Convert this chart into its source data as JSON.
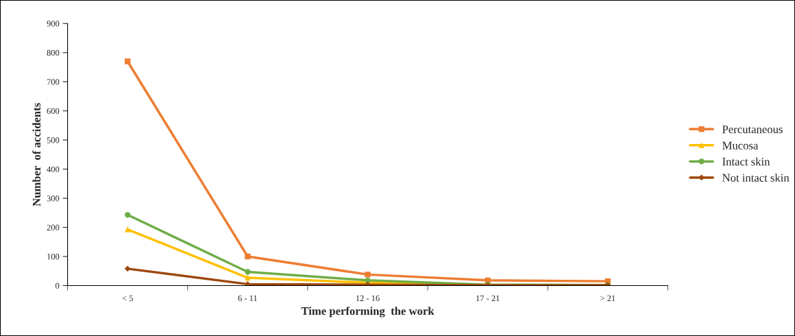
{
  "chart_data": {
    "type": "line",
    "xlabel": "Time performing  the work",
    "ylabel": "Number  of accidents",
    "categories": [
      "< 5",
      "6 - 11",
      "12 - 16",
      "17 - 21",
      "> 21"
    ],
    "ylim": [
      0,
      900
    ],
    "yticks": [
      0,
      100,
      200,
      300,
      400,
      500,
      600,
      700,
      800,
      900
    ],
    "grid": false,
    "legend": "right",
    "line_style": "solid",
    "series": [
      {
        "name": "Percutaneous",
        "color": "#ed7d31",
        "marker": "square",
        "values": [
          770,
          100,
          38,
          18,
          15
        ]
      },
      {
        "name": "Mucosa",
        "color": "#ffc000",
        "marker": "triangle",
        "values": [
          193,
          27,
          10,
          2,
          2
        ]
      },
      {
        "name": "Intact skin",
        "color": "#70ad47",
        "marker": "circle",
        "values": [
          243,
          47,
          18,
          3,
          2
        ]
      },
      {
        "name": "Not intact skin",
        "color": "#9e480e",
        "marker": "diamond",
        "values": [
          58,
          5,
          3,
          1,
          1
        ]
      }
    ]
  }
}
